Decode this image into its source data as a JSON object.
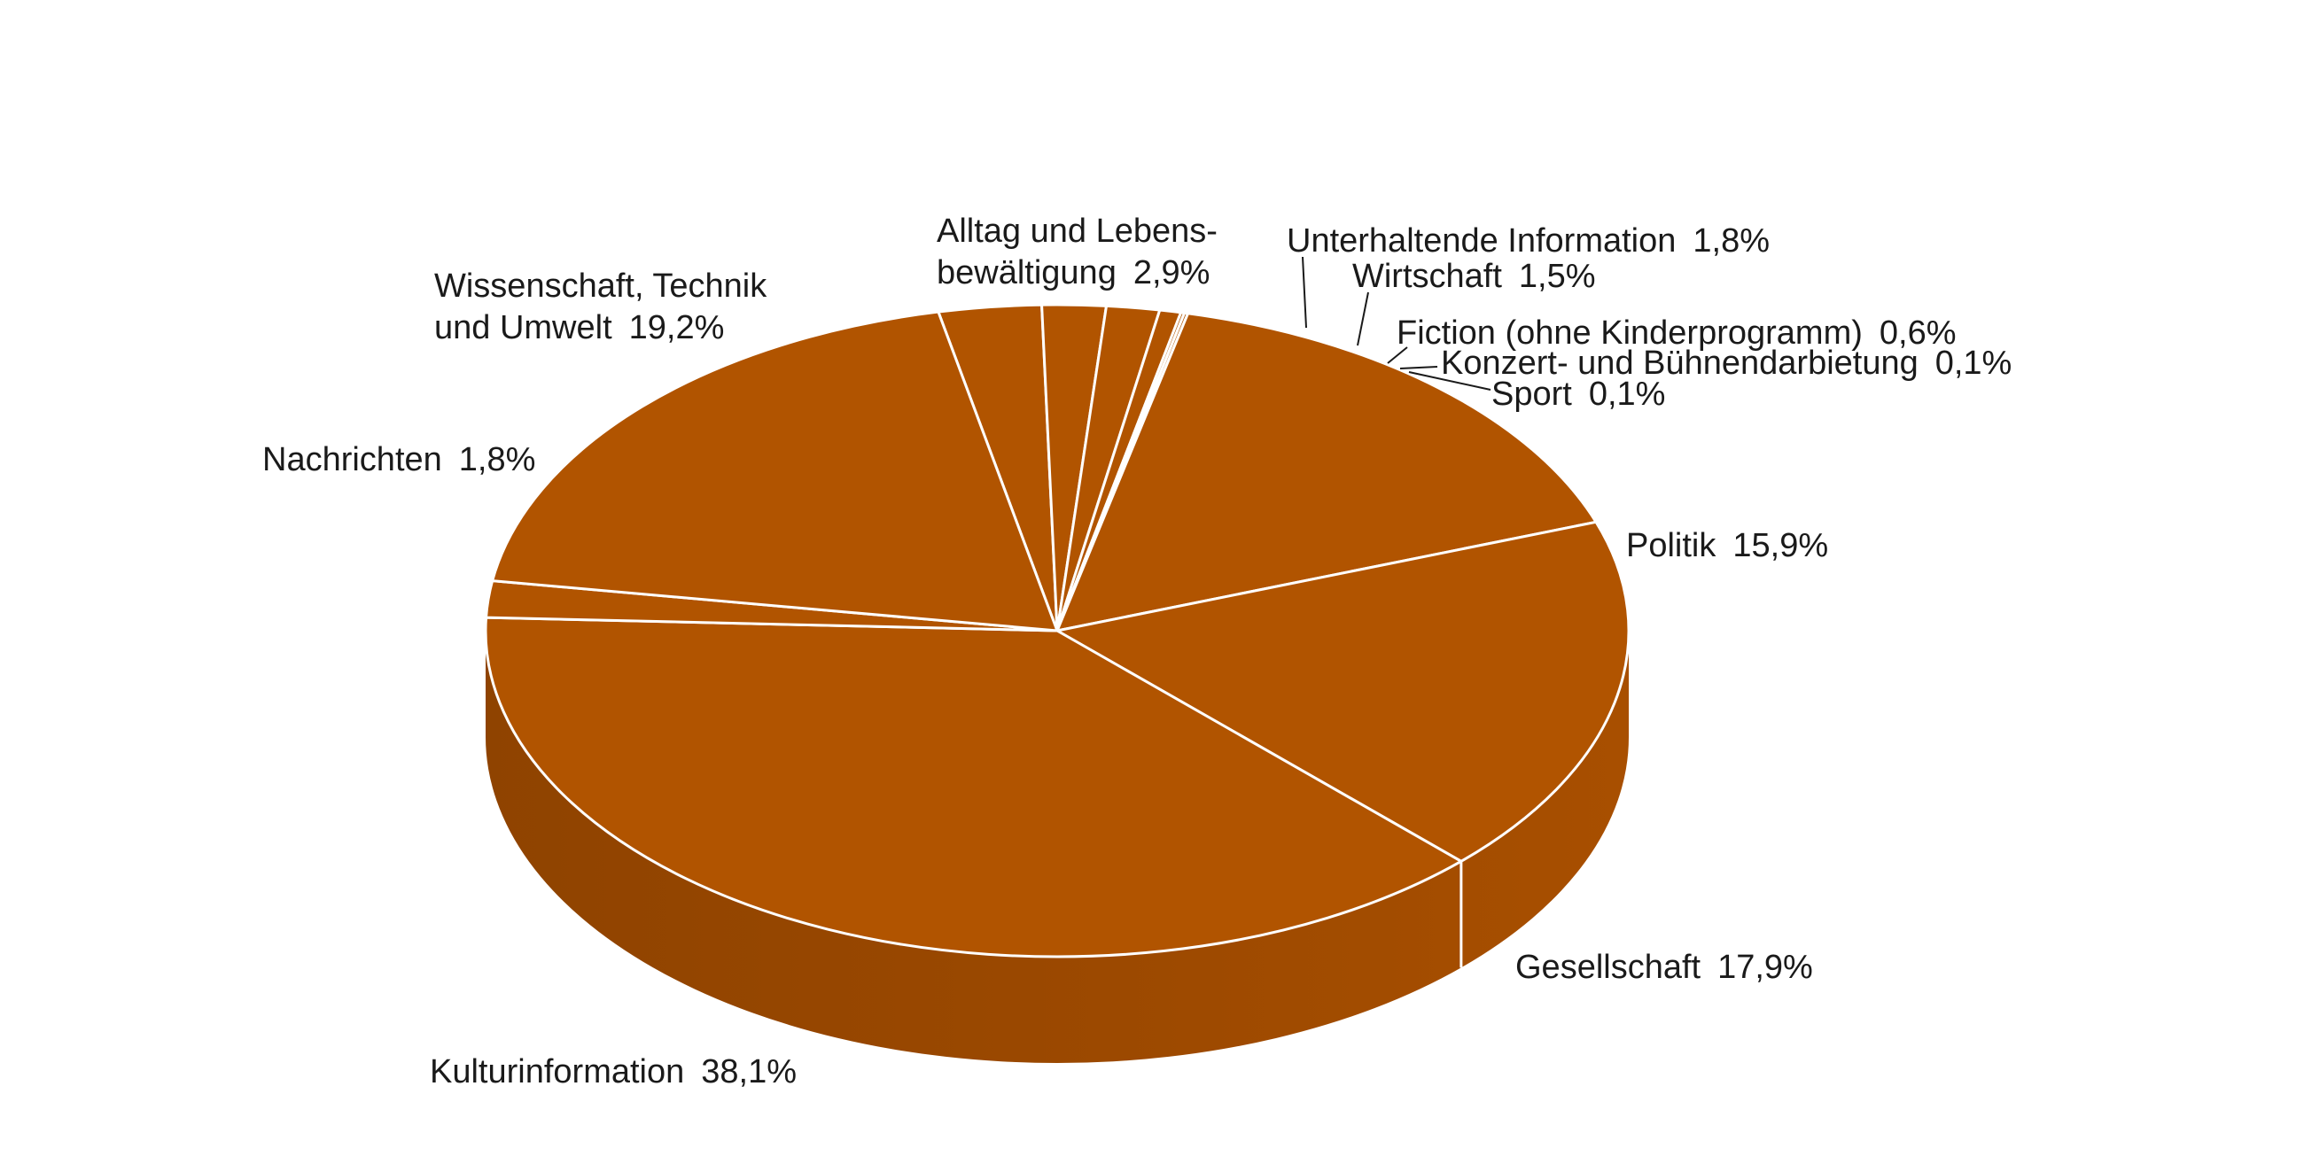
{
  "chart_data": {
    "type": "pie",
    "style": "3d",
    "color": "#b15400",
    "side_color": "#9a4800",
    "separator_color": "#ffffff",
    "slices": [
      {
        "label_lines": [
          "Alltag und Lebens-",
          "bewältigung"
        ],
        "value_text": "2,9%",
        "value": 2.9
      },
      {
        "label_lines": [
          "Unterhaltende Information"
        ],
        "value_text": "1,8%",
        "value": 1.8
      },
      {
        "label_lines": [
          "Wirtschaft"
        ],
        "value_text": "1,5%",
        "value": 1.5
      },
      {
        "label_lines": [
          "Fiction (ohne Kinderprogramm)"
        ],
        "value_text": "0,6%",
        "value": 0.6
      },
      {
        "label_lines": [
          "Konzert- und Bühnendarbietung"
        ],
        "value_text": "0,1%",
        "value": 0.1
      },
      {
        "label_lines": [
          "Sport"
        ],
        "value_text": "0,1%",
        "value": 0.1
      },
      {
        "label_lines": [
          "Politik"
        ],
        "value_text": "15,9%",
        "value": 15.9
      },
      {
        "label_lines": [
          "Gesellschaft"
        ],
        "value_text": "17,9%",
        "value": 17.9
      },
      {
        "label_lines": [
          "Kulturinformation"
        ],
        "value_text": "38,1%",
        "value": 38.1
      },
      {
        "label_lines": [
          "Nachrichten"
        ],
        "value_text": "1,8%",
        "value": 1.8
      },
      {
        "label_lines": [
          "Wissenschaft, Technik",
          "und Umwelt"
        ],
        "value_text": "19,2%",
        "value": 19.2
      }
    ]
  }
}
